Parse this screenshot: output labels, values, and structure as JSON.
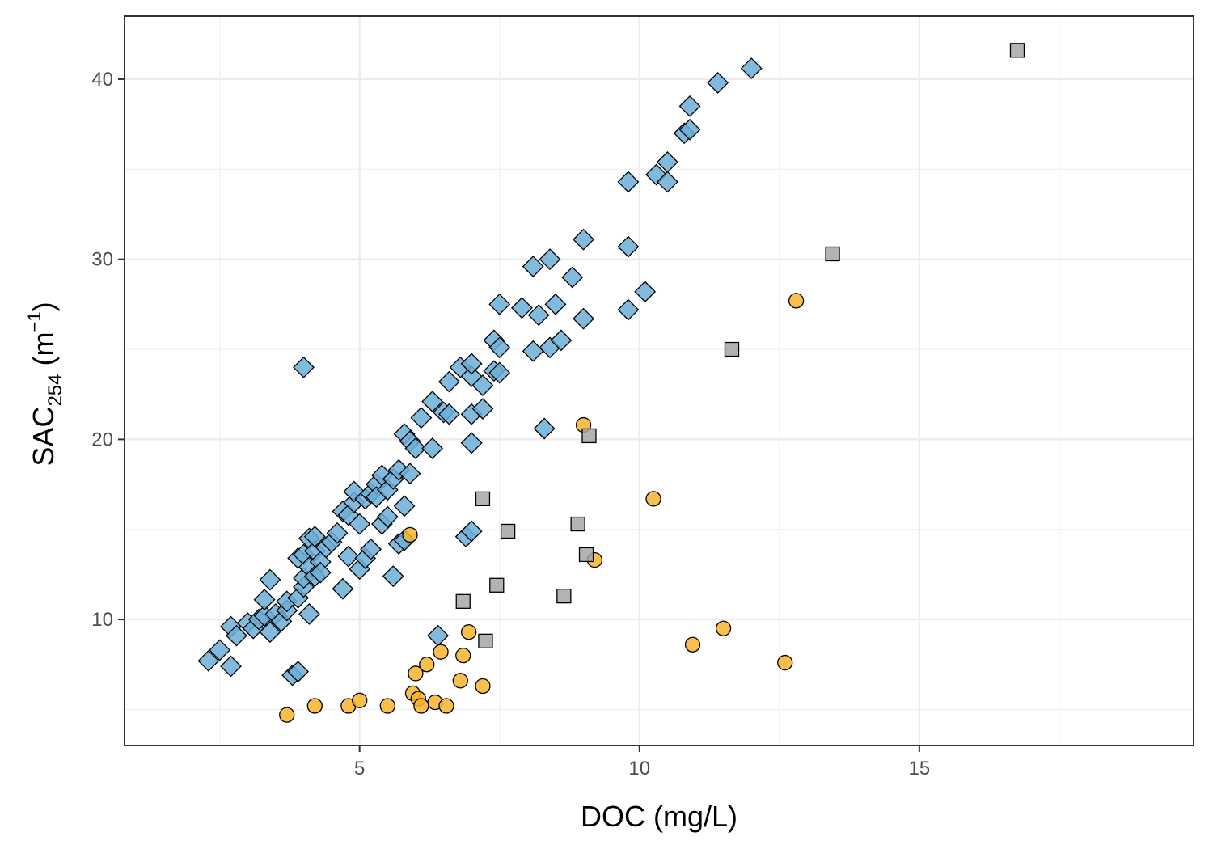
{
  "chart_data": {
    "type": "scatter",
    "xlabel": "DOC (mg/L)",
    "ylabel": {
      "main": "SAC",
      "sub": "254",
      "unit_open": " (m",
      "unit_sup": "−1",
      "unit_close": ")"
    },
    "xlim": [
      0.8,
      19.9
    ],
    "ylim": [
      3.0,
      43.5
    ],
    "x_ticks": [
      5,
      10,
      15
    ],
    "y_ticks": [
      10,
      20,
      30,
      40
    ],
    "grid": true,
    "legend": "none",
    "series": [
      {
        "marker": "diamond",
        "color": "#6baed6",
        "points": [
          [
            2.3,
            7.7
          ],
          [
            2.5,
            8.3
          ],
          [
            2.7,
            7.4
          ],
          [
            2.7,
            9.6
          ],
          [
            2.8,
            9.1
          ],
          [
            3.0,
            9.8
          ],
          [
            3.1,
            9.5
          ],
          [
            3.2,
            10.0
          ],
          [
            3.3,
            10.2
          ],
          [
            3.3,
            11.1
          ],
          [
            3.4,
            12.2
          ],
          [
            3.4,
            9.3
          ],
          [
            3.5,
            10.3
          ],
          [
            3.6,
            9.9
          ],
          [
            3.7,
            10.5
          ],
          [
            3.7,
            11.0
          ],
          [
            3.8,
            6.9
          ],
          [
            3.9,
            7.1
          ],
          [
            3.9,
            11.2
          ],
          [
            4.0,
            11.8
          ],
          [
            4.0,
            12.3
          ],
          [
            3.9,
            13.4
          ],
          [
            4.0,
            13.6
          ],
          [
            4.0,
            24.0
          ],
          [
            4.1,
            10.3
          ],
          [
            4.1,
            12.9
          ],
          [
            4.1,
            14.5
          ],
          [
            4.2,
            12.4
          ],
          [
            4.2,
            13.8
          ],
          [
            4.2,
            14.6
          ],
          [
            4.3,
            13.2
          ],
          [
            4.3,
            12.6
          ],
          [
            4.4,
            14.0
          ],
          [
            4.5,
            14.3
          ],
          [
            4.6,
            14.8
          ],
          [
            4.7,
            16.0
          ],
          [
            4.7,
            11.7
          ],
          [
            4.8,
            13.5
          ],
          [
            4.8,
            15.8
          ],
          [
            4.9,
            16.5
          ],
          [
            4.9,
            17.1
          ],
          [
            5.0,
            12.8
          ],
          [
            5.0,
            15.3
          ],
          [
            5.1,
            13.4
          ],
          [
            5.1,
            16.7
          ],
          [
            5.2,
            17.0
          ],
          [
            5.2,
            13.9
          ],
          [
            5.3,
            17.5
          ],
          [
            5.3,
            16.8
          ],
          [
            5.4,
            18.0
          ],
          [
            5.4,
            15.3
          ],
          [
            5.5,
            15.7
          ],
          [
            5.5,
            17.2
          ],
          [
            5.6,
            12.4
          ],
          [
            5.6,
            17.8
          ],
          [
            5.7,
            18.3
          ],
          [
            5.7,
            14.2
          ],
          [
            5.8,
            14.4
          ],
          [
            5.8,
            16.3
          ],
          [
            5.8,
            20.3
          ],
          [
            5.9,
            19.9
          ],
          [
            5.9,
            18.1
          ],
          [
            6.0,
            19.5
          ],
          [
            6.1,
            21.2
          ],
          [
            6.3,
            19.5
          ],
          [
            6.3,
            22.1
          ],
          [
            6.4,
            9.1
          ],
          [
            6.5,
            21.5
          ],
          [
            6.6,
            21.4
          ],
          [
            6.6,
            23.2
          ],
          [
            6.8,
            24.0
          ],
          [
            6.9,
            14.6
          ],
          [
            7.0,
            14.9
          ],
          [
            7.0,
            19.8
          ],
          [
            7.0,
            21.4
          ],
          [
            7.0,
            23.5
          ],
          [
            7.0,
            24.2
          ],
          [
            7.2,
            21.7
          ],
          [
            7.2,
            23.0
          ],
          [
            7.4,
            25.5
          ],
          [
            7.4,
            23.8
          ],
          [
            7.5,
            25.1
          ],
          [
            7.5,
            23.7
          ],
          [
            7.5,
            27.5
          ],
          [
            7.9,
            27.3
          ],
          [
            8.1,
            24.9
          ],
          [
            8.1,
            29.6
          ],
          [
            8.2,
            26.9
          ],
          [
            8.3,
            20.6
          ],
          [
            8.4,
            25.1
          ],
          [
            8.4,
            30.0
          ],
          [
            8.5,
            27.5
          ],
          [
            8.6,
            25.5
          ],
          [
            8.8,
            29.0
          ],
          [
            9.0,
            26.7
          ],
          [
            9.0,
            31.1
          ],
          [
            9.8,
            27.2
          ],
          [
            9.8,
            34.3
          ],
          [
            9.8,
            30.7
          ],
          [
            10.1,
            28.2
          ],
          [
            10.3,
            34.7
          ],
          [
            10.5,
            35.4
          ],
          [
            10.5,
            34.3
          ],
          [
            10.8,
            37.0
          ],
          [
            10.9,
            38.5
          ],
          [
            10.9,
            37.2
          ],
          [
            11.4,
            39.8
          ],
          [
            12.0,
            40.6
          ]
        ]
      },
      {
        "marker": "circle",
        "color": "#f8b32b",
        "points": [
          [
            3.7,
            4.7
          ],
          [
            4.2,
            5.2
          ],
          [
            4.8,
            5.2
          ],
          [
            5.0,
            5.5
          ],
          [
            5.5,
            5.2
          ],
          [
            5.9,
            14.7
          ],
          [
            5.95,
            5.9
          ],
          [
            6.0,
            7.0
          ],
          [
            6.05,
            5.6
          ],
          [
            6.1,
            5.2
          ],
          [
            6.2,
            7.5
          ],
          [
            6.35,
            5.4
          ],
          [
            6.45,
            8.2
          ],
          [
            6.55,
            5.2
          ],
          [
            6.8,
            6.6
          ],
          [
            6.85,
            8.0
          ],
          [
            6.95,
            9.3
          ],
          [
            7.2,
            6.3
          ],
          [
            9.0,
            20.8
          ],
          [
            9.2,
            13.3
          ],
          [
            10.25,
            16.7
          ],
          [
            10.95,
            8.6
          ],
          [
            11.5,
            9.5
          ],
          [
            12.6,
            7.6
          ],
          [
            12.8,
            27.7
          ]
        ]
      },
      {
        "marker": "square",
        "color": "#a6a6a6",
        "points": [
          [
            6.85,
            11.0
          ],
          [
            7.2,
            16.7
          ],
          [
            7.25,
            8.8
          ],
          [
            7.45,
            11.9
          ],
          [
            7.65,
            14.9
          ],
          [
            8.65,
            11.3
          ],
          [
            8.9,
            15.3
          ],
          [
            9.05,
            13.6
          ],
          [
            9.1,
            20.2
          ],
          [
            11.65,
            25.0
          ],
          [
            13.45,
            30.3
          ],
          [
            16.75,
            41.6
          ]
        ]
      }
    ]
  }
}
